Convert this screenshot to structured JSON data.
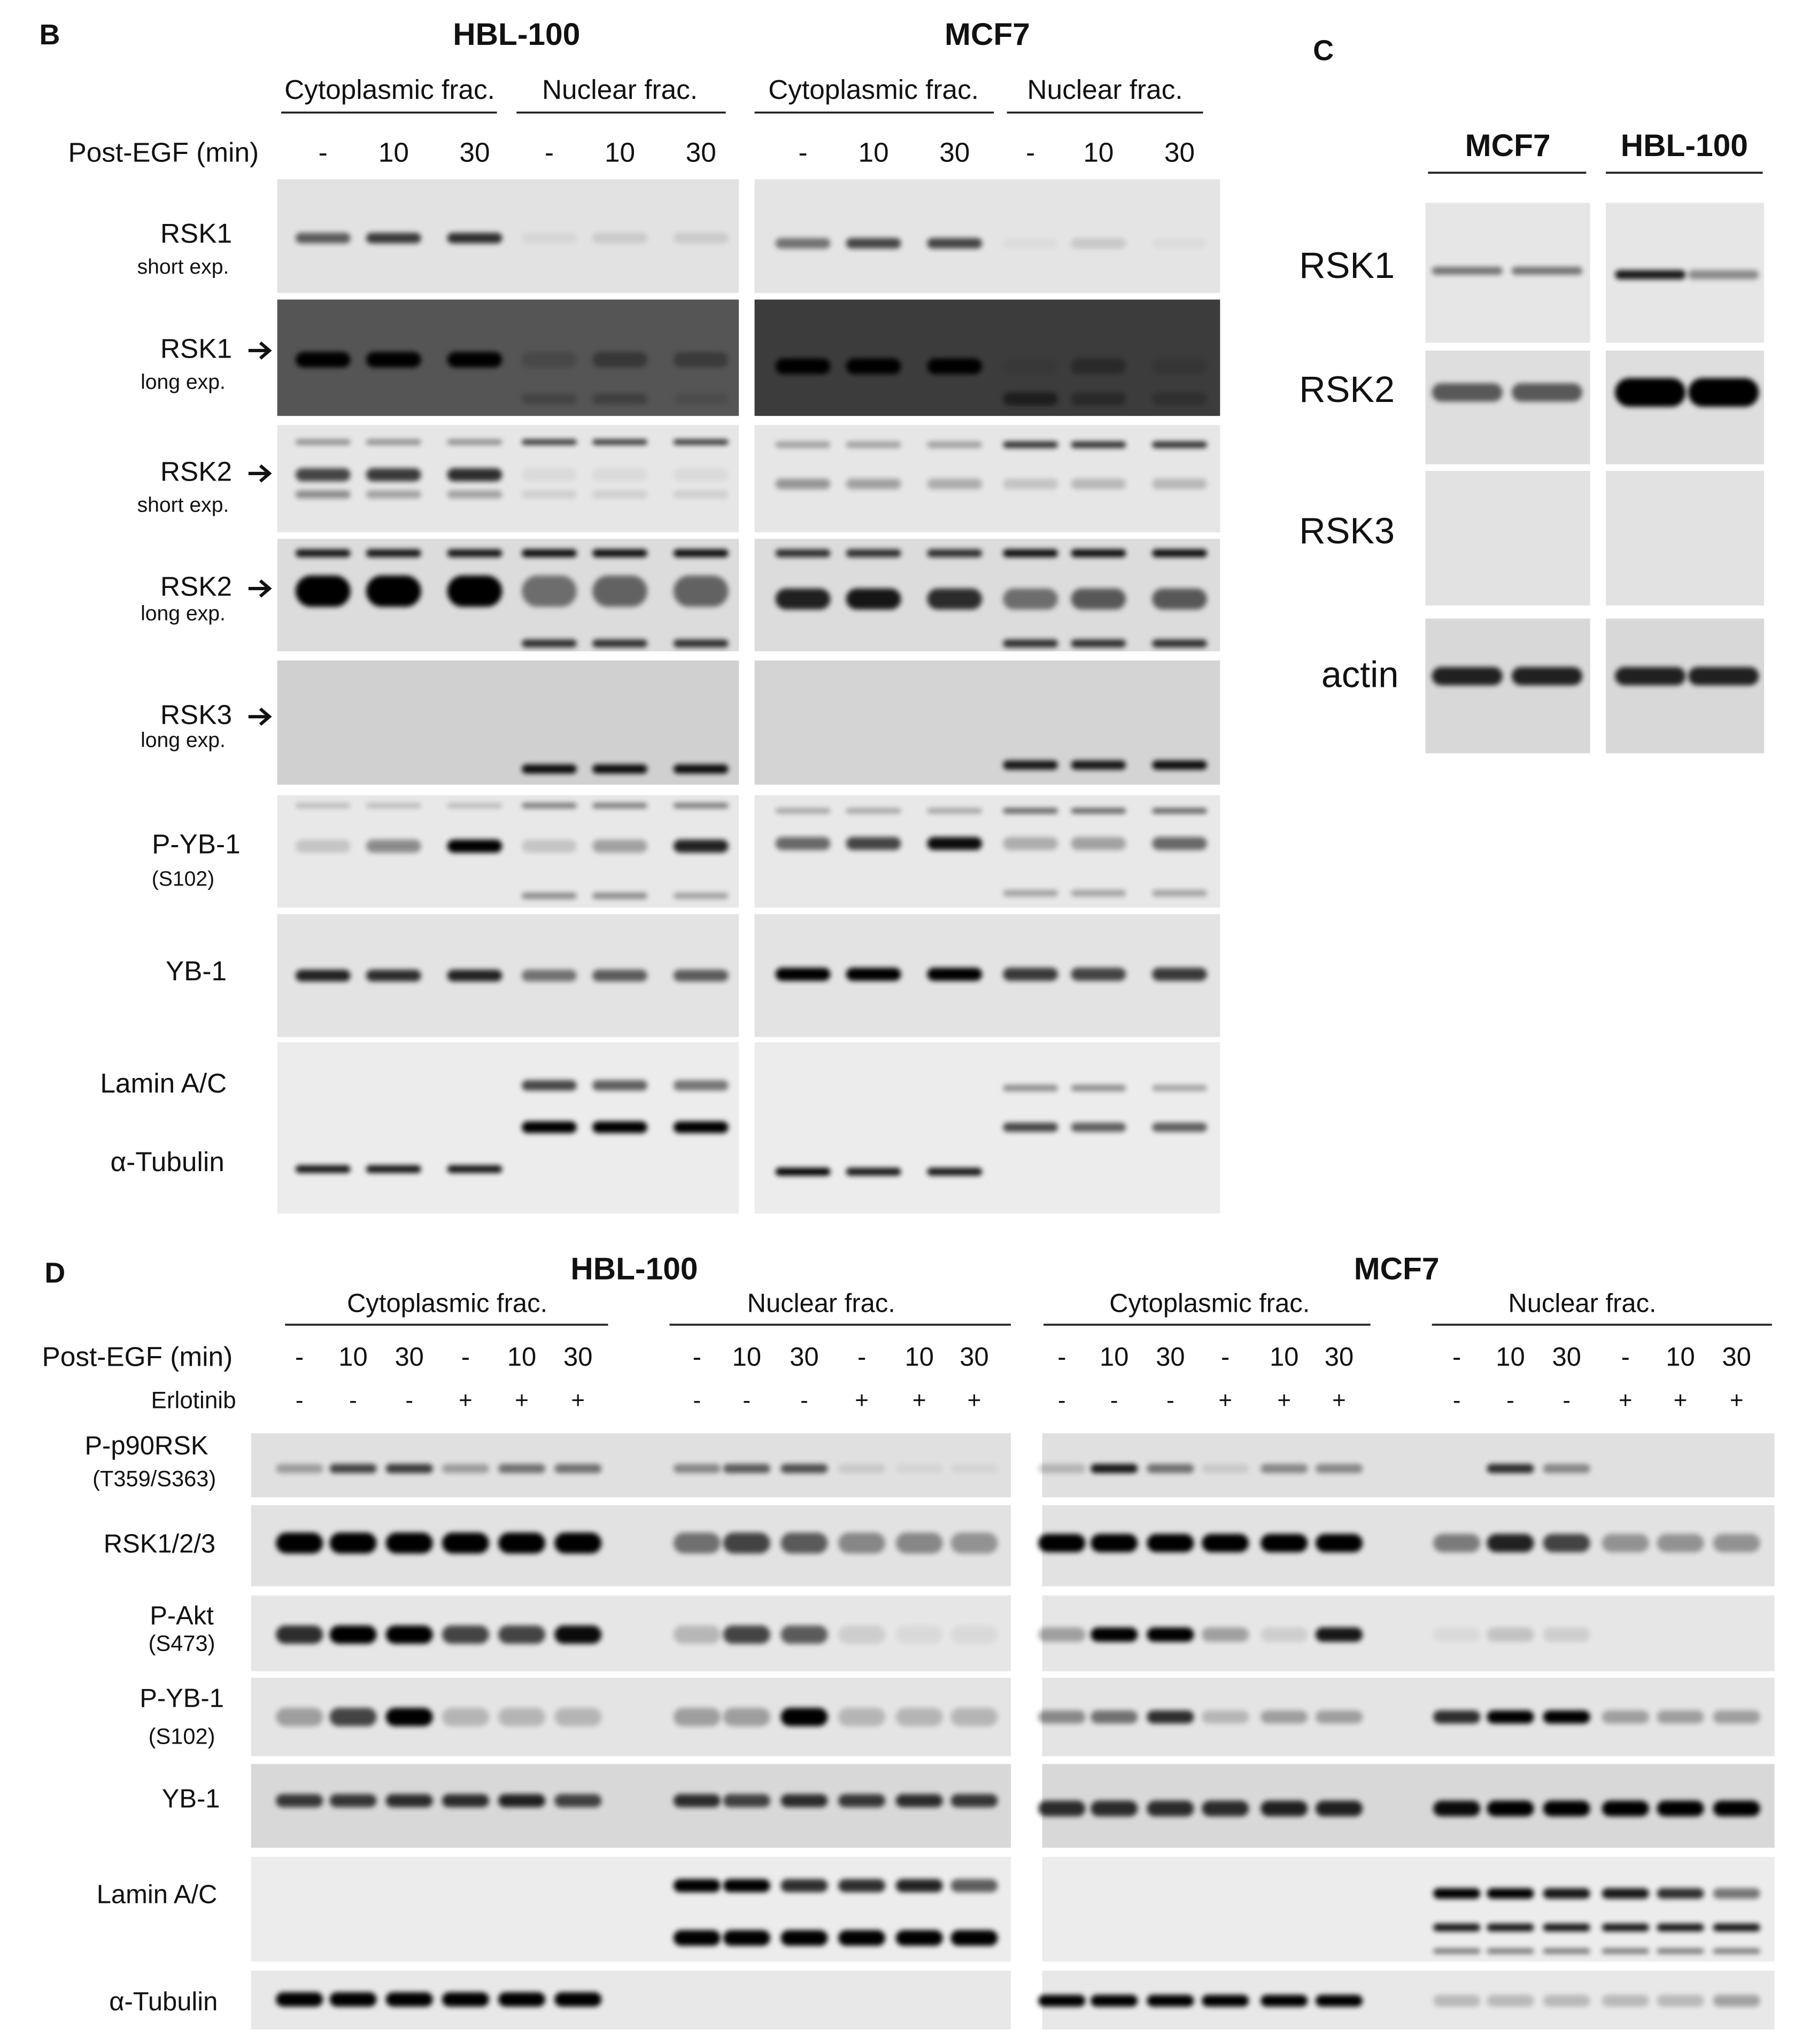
{
  "panel_b": {
    "label": "B",
    "cell_lines": [
      "HBL-100",
      "MCF7"
    ],
    "fractions": [
      "Cytoplasmic frac.",
      "Nuclear frac.",
      "Cytoplasmic frac.",
      "Nuclear frac."
    ],
    "post_egf": {
      "label": "Post-EGF (min)",
      "lanes": [
        "-",
        "10",
        "30",
        "-",
        "10",
        "30",
        "-",
        "10",
        "30",
        "-",
        "10",
        "30"
      ]
    },
    "blots": [
      {
        "label": "RSK1",
        "sub": "short exp."
      },
      {
        "label": "RSK1",
        "sub": "long exp."
      },
      {
        "label": "RSK2",
        "sub": "short exp."
      },
      {
        "label": "RSK2",
        "sub": "long exp."
      },
      {
        "label": "RSK3",
        "sub": "long exp."
      },
      {
        "label": "P-YB-1",
        "sub": "(S102)"
      },
      {
        "label": "YB-1"
      },
      {
        "label": "Lamin A/C"
      },
      {
        "label": "α-Tubulin"
      }
    ]
  },
  "panel_c": {
    "label": "C",
    "cell_lines": [
      "MCF7",
      "HBL-100"
    ],
    "blots": [
      "RSK1",
      "RSK2",
      "RSK3",
      "actin"
    ]
  },
  "panel_d": {
    "label": "D",
    "cell_lines": [
      "HBL-100",
      "MCF7"
    ],
    "fractions": [
      "Cytoplasmic frac.",
      "Nuclear frac.",
      "Cytoplasmic frac.",
      "Nuclear frac."
    ],
    "post_egf": {
      "label": "Post-EGF (min)",
      "lanes": [
        "-",
        "10",
        "30",
        "-",
        "10",
        "30",
        "-",
        "10",
        "30",
        "-",
        "10",
        "30",
        "-",
        "10",
        "30",
        "-",
        "10",
        "30",
        "-",
        "10",
        "30",
        "-",
        "10",
        "30"
      ]
    },
    "erlotinib": {
      "label": "Erlotinib",
      "lanes": [
        "-",
        "-",
        "-",
        "+",
        "+",
        "+",
        "-",
        "-",
        "-",
        "+",
        "+",
        "+",
        "-",
        "-",
        "-",
        "+",
        "+",
        "+",
        "-",
        "-",
        "-",
        "+",
        "+",
        "+"
      ]
    },
    "blots": [
      {
        "label": "P-p90RSK",
        "sub": "(T359/S363)"
      },
      {
        "label": "RSK1/2/3"
      },
      {
        "label": "P-Akt",
        "sub": "(S473)"
      },
      {
        "label": "P-YB-1",
        "sub": "(S102)"
      },
      {
        "label": "YB-1"
      },
      {
        "label": "Lamin A/C"
      },
      {
        "label": "α-Tubulin"
      }
    ]
  }
}
